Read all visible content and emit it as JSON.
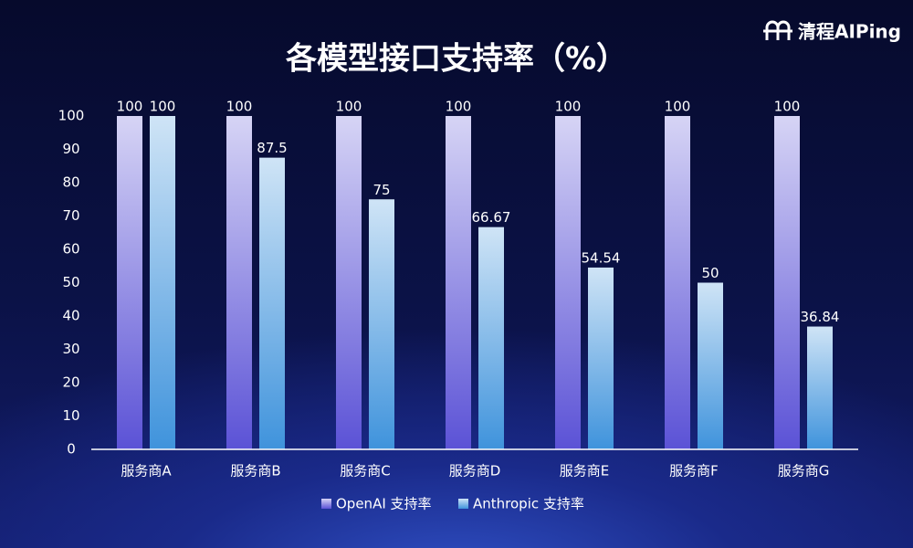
{
  "brand": "清程AIPing",
  "chart_data": {
    "type": "bar",
    "title": "各模型接口支持率（%）",
    "categories": [
      "服务商A",
      "服务商B",
      "服务商C",
      "服务商D",
      "服务商E",
      "服务商F",
      "服务商G"
    ],
    "series": [
      {
        "name": "OpenAI 支持率",
        "color": "#5b52d6",
        "values": [
          100,
          100,
          100,
          100,
          100,
          100,
          100
        ]
      },
      {
        "name": "Anthropic 支持率",
        "color": "#3f93dc",
        "values": [
          100,
          87.5,
          75,
          66.67,
          54.54,
          50,
          36.84
        ]
      }
    ],
    "ylim": [
      0,
      100
    ],
    "yticks": [
      0,
      10,
      20,
      30,
      40,
      50,
      60,
      70,
      80,
      90,
      100
    ],
    "grid": false,
    "legend": "bottom"
  }
}
